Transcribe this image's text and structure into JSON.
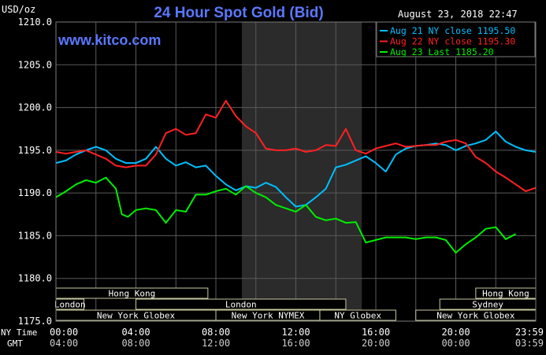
{
  "header": {
    "unit": "USD/oz",
    "title": "24 Hour Spot Gold (Bid)",
    "timestamp": "August 23, 2018 22:47",
    "website": "www.kitco.com"
  },
  "colors": {
    "background": "#000000",
    "grid": "#5a5a5a",
    "shaded": "#2b2b2b",
    "title": "#5a78ff",
    "website": "#5a78ff",
    "text": "#ffffff",
    "band_bg": "#000000",
    "band_border": "#c8c8a0",
    "band_text": "#ffffff"
  },
  "chart_data": {
    "type": "line",
    "title": "24 Hour Spot Gold (Bid)",
    "ylabel": "USD/oz",
    "ylim": [
      1175,
      1210
    ],
    "yticks": [
      1175,
      1180,
      1185,
      1190,
      1195,
      1200,
      1205,
      1210
    ],
    "ytick_labels": [
      "1175.0",
      "1180.0",
      "1185.0",
      "1190.0",
      "1195.0",
      "1200.0",
      "1205.0",
      "1210.0"
    ],
    "xlim": [
      0,
      24
    ],
    "xticks": [
      0,
      4,
      8,
      12,
      16,
      20,
      23.983
    ],
    "xtick_labels_ny": [
      "00:00",
      "04:00",
      "08:00",
      "12:00",
      "16:00",
      "20:00",
      "23:59"
    ],
    "xtick_labels_gmt": [
      "04:00",
      "08:00",
      "12:00",
      "16:00",
      "20:00",
      "00:00",
      "03:59"
    ],
    "x_row_label_ny": "NY Time",
    "x_row_label_gmt": "GMT",
    "shaded_region": [
      9.3,
      15.3
    ],
    "grid": true,
    "legend_position": "top-right",
    "series": [
      {
        "name": "Aug 21 NY close 1195.50",
        "color": "#00bfff",
        "x": [
          0,
          0.5,
          1,
          1.5,
          2,
          2.5,
          3,
          3.5,
          4,
          4.5,
          5,
          5.5,
          6,
          6.5,
          7,
          7.5,
          8,
          8.5,
          9,
          9.5,
          10,
          10.5,
          11,
          11.5,
          12,
          12.5,
          13,
          13.5,
          14,
          14.5,
          15,
          15.5,
          16,
          16.5,
          17,
          17.5,
          18,
          18.5,
          19,
          19.5,
          20,
          20.5,
          21,
          21.5,
          22,
          22.5,
          23,
          23.5,
          24
        ],
        "y": [
          1193.5,
          1193.8,
          1194.5,
          1195.0,
          1195.4,
          1195.0,
          1194.0,
          1193.5,
          1193.5,
          1194.0,
          1195.4,
          1194.0,
          1193.2,
          1193.6,
          1193.0,
          1193.2,
          1192.0,
          1191.0,
          1190.3,
          1190.8,
          1190.6,
          1191.2,
          1190.7,
          1189.5,
          1188.4,
          1188.6,
          1189.5,
          1190.5,
          1193.0,
          1193.3,
          1193.8,
          1194.3,
          1193.5,
          1192.5,
          1194.5,
          1195.2,
          1195.5,
          1195.6,
          1195.8,
          1195.6,
          1195.0,
          1195.5,
          1195.8,
          1196.2,
          1197.2,
          1196.0,
          1195.4,
          1195.0,
          1194.8
        ]
      },
      {
        "name": "Aug 22 NY close 1195.30",
        "color": "#ff2020",
        "x": [
          0,
          0.5,
          1,
          1.5,
          2,
          2.5,
          3,
          3.5,
          4,
          4.5,
          5,
          5.5,
          6,
          6.5,
          7,
          7.5,
          8,
          8.5,
          9,
          9.5,
          10,
          10.5,
          11,
          11.5,
          12,
          12.5,
          13,
          13.5,
          14,
          14.5,
          15,
          15.5,
          16,
          16.5,
          17,
          17.5,
          18,
          18.5,
          19,
          19.5,
          20,
          20.5,
          21,
          21.5,
          22,
          22.5,
          23,
          23.5,
          24
        ],
        "y": [
          1194.8,
          1194.6,
          1194.8,
          1195.0,
          1194.5,
          1194.0,
          1193.2,
          1193.0,
          1193.2,
          1193.2,
          1194.5,
          1197.0,
          1197.5,
          1196.8,
          1197.0,
          1199.2,
          1198.8,
          1200.8,
          1199.0,
          1197.8,
          1197.0,
          1195.2,
          1195.0,
          1195.0,
          1195.2,
          1194.8,
          1195.0,
          1195.6,
          1195.5,
          1197.5,
          1195.0,
          1194.6,
          1195.2,
          1195.5,
          1195.8,
          1195.4,
          1195.5,
          1195.6,
          1195.6,
          1196.0,
          1196.2,
          1195.8,
          1194.2,
          1193.5,
          1192.5,
          1191.8,
          1191.0,
          1190.2,
          1190.6
        ]
      },
      {
        "name": "Aug 23 Last 1185.20",
        "color": "#00ee00",
        "x": [
          0,
          0.5,
          1,
          1.5,
          2,
          2.5,
          3,
          3.3,
          3.6,
          4,
          4.5,
          5,
          5.5,
          6,
          6.5,
          7,
          7.5,
          8,
          8.5,
          9,
          9.5,
          10,
          10.5,
          11,
          11.5,
          12,
          12.5,
          13,
          13.5,
          14,
          14.5,
          15,
          15.5,
          16,
          16.5,
          17,
          17.5,
          18,
          18.5,
          19,
          19.5,
          20,
          20.5,
          21,
          21.5,
          22,
          22.5,
          23
        ],
        "y": [
          1189.5,
          1190.2,
          1191.0,
          1191.5,
          1191.2,
          1191.8,
          1190.5,
          1187.5,
          1187.2,
          1188.0,
          1188.2,
          1188.0,
          1186.5,
          1188.0,
          1187.8,
          1189.8,
          1189.8,
          1190.2,
          1190.5,
          1189.8,
          1190.8,
          1190.0,
          1189.5,
          1188.6,
          1188.2,
          1187.8,
          1188.6,
          1187.2,
          1186.8,
          1187.0,
          1186.5,
          1186.6,
          1184.2,
          1184.5,
          1184.8,
          1184.8,
          1184.8,
          1184.6,
          1184.8,
          1184.8,
          1184.5,
          1183.0,
          1184.0,
          1184.8,
          1185.8,
          1186.0,
          1184.6,
          1185.2
        ]
      }
    ],
    "market_bands": [
      {
        "label": "Hong Kong",
        "row": 0,
        "start": 0,
        "end": 7.6
      },
      {
        "label": "Hong Kong",
        "row": 0,
        "start": 21.0,
        "end": 24
      },
      {
        "label": "London",
        "row": 1,
        "start": 0,
        "end": 1.4
      },
      {
        "label": "London",
        "row": 1,
        "start": 4.0,
        "end": 14.5
      },
      {
        "label": "Sydney",
        "row": 1,
        "start": 19.2,
        "end": 24
      },
      {
        "label": "New York Globex",
        "row": 2,
        "start": 0,
        "end": 8.0
      },
      {
        "label": "New York NYMEX",
        "row": 2,
        "start": 8.0,
        "end": 13.2
      },
      {
        "label": "NY Globex",
        "row": 2,
        "start": 13.2,
        "end": 17.0
      },
      {
        "label": "New York Globex",
        "row": 2,
        "start": 18.0,
        "end": 24
      }
    ]
  }
}
